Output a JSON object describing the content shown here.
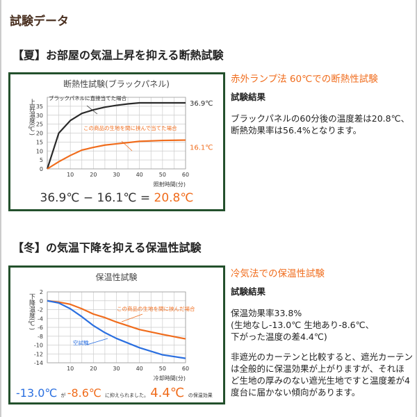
{
  "title": "試験データ",
  "summer": {
    "header": "【夏】お部屋の気温上昇を抑える断熱試験",
    "header_color": "#c9d5ea",
    "method": "赤外ランプ法 60℃での断熱性試験",
    "result_label": "試験結果",
    "result_text": "ブラックパネルの60分後の温度差は20.8℃、断熱効果率は56.4%となります。",
    "equation": {
      "a": "36.9℃ − 16.1℃ = ",
      "b": "20.8℃"
    }
  },
  "winter": {
    "header": "【冬】の気温下降を抑える保温性試験",
    "header_color": "#f5b896",
    "method": "冷気法での保温性試験",
    "result_label": "試験結果",
    "result_lines": [
      "保温効果率33.8%",
      "(生地なし-13.0℃ 生地あり-8.6℃、",
      "下がった温度の差4.4℃)"
    ],
    "note": "非遮光のカーテンと比較すると、遮光カーテンは全般的に保温効果が上がりますが、それほど生地の厚みのない遮光生地ですと温度差が4度台に届かない傾向があります。",
    "summary": {
      "a": "-13.0℃",
      "b": "が",
      "c": "-8.6℃",
      "d": "に抑えられました。",
      "e": "4.4℃",
      "f": "の保温効果"
    }
  },
  "chart_data": [
    {
      "type": "line",
      "title": "断熱性試験(ブラックパネル)",
      "ylabel": "上昇温度(℃)",
      "xlabel": "照射時間(分)",
      "xlim": [
        0,
        60
      ],
      "ylim": [
        0,
        40
      ],
      "xticks": [
        10,
        20,
        30,
        40,
        50,
        60
      ],
      "yticks": [
        0,
        5,
        10,
        15,
        20,
        25,
        30,
        35
      ],
      "grid": true,
      "series": [
        {
          "name": "ブラックパネルに直接当てた場合",
          "color": "#2a2a2a",
          "end_label": "36.9℃",
          "x": [
            0,
            5,
            10,
            15,
            20,
            25,
            30,
            35,
            40,
            50,
            60
          ],
          "y": [
            0,
            20,
            27,
            31,
            33,
            34.5,
            35.5,
            36.3,
            36.9,
            36.9,
            36.9
          ]
        },
        {
          "name": "この商品の生地を間に挟んで当てた場合",
          "color": "#f06c1c",
          "end_label": "16.1℃",
          "x": [
            0,
            5,
            10,
            15,
            20,
            25,
            30,
            40,
            50,
            60
          ],
          "y": [
            0,
            4,
            7.5,
            10.5,
            12,
            13.3,
            14,
            15.4,
            15.9,
            16.1
          ]
        }
      ]
    },
    {
      "type": "line",
      "title": "保温性試験",
      "ylabel": "下降温度(℃)",
      "xlabel": "冷却時間(分)",
      "xlim": [
        0,
        60
      ],
      "ylim": [
        -14,
        2
      ],
      "xticks": [
        10,
        20,
        30,
        40,
        50,
        60
      ],
      "yticks": [
        2,
        0,
        -2,
        -4,
        -6,
        -8,
        -10,
        -12,
        -14
      ],
      "grid": true,
      "series": [
        {
          "name": "この商品の生地を間に挟んだ場合",
          "color": "#f06c1c",
          "x": [
            0,
            5,
            10,
            15,
            20,
            25,
            30,
            40,
            50,
            60
          ],
          "y": [
            0,
            -0.3,
            -0.8,
            -1.8,
            -3,
            -3.8,
            -4.8,
            -6.5,
            -7.6,
            -8.6
          ]
        },
        {
          "name": "空試験",
          "color": "#2a6fe0",
          "x": [
            0,
            5,
            10,
            15,
            20,
            25,
            30,
            40,
            50,
            60
          ],
          "y": [
            0,
            -0.5,
            -1.8,
            -3.6,
            -5.6,
            -7.2,
            -8.5,
            -10.6,
            -12.2,
            -13.0
          ]
        }
      ]
    }
  ]
}
